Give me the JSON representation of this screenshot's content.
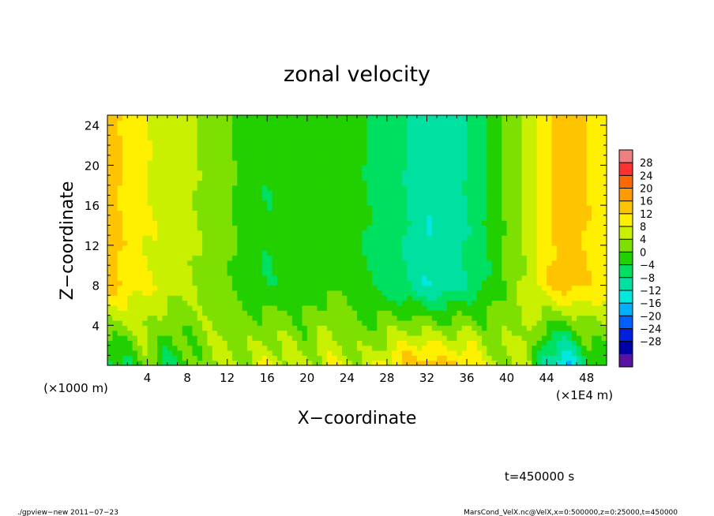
{
  "chart_data": {
    "type": "heatmap",
    "title": "zonal velocity",
    "xlabel": "X−coordinate",
    "ylabel": "Z−coordinate",
    "x_unit_left": "(×1000 m)",
    "x_unit_right": "(×1E4 m)",
    "x_ticks": [
      "4",
      "8",
      "12",
      "16",
      "20",
      "24",
      "28",
      "32",
      "36",
      "40",
      "44",
      "48"
    ],
    "x_tick_values": [
      4,
      8,
      12,
      16,
      20,
      24,
      28,
      32,
      36,
      40,
      44,
      48
    ],
    "y_ticks": [
      "4",
      "8",
      "12",
      "16",
      "20",
      "24"
    ],
    "y_tick_values": [
      4,
      8,
      12,
      16,
      20,
      24
    ],
    "xlim": [
      0,
      50
    ],
    "ylim": [
      0,
      25
    ],
    "colorbar": {
      "labels": [
        "28",
        "24",
        "20",
        "16",
        "12",
        "8",
        "4",
        "0",
        "−4",
        "−8",
        "−12",
        "−16",
        "−20",
        "−24",
        "−28"
      ],
      "values": [
        28,
        24,
        20,
        16,
        12,
        8,
        4,
        0,
        -4,
        -8,
        -12,
        -16,
        -20,
        -24,
        -28
      ],
      "colors": [
        "#f08080",
        "#ff3030",
        "#ff6a00",
        "#ff9a00",
        "#ffc400",
        "#fff000",
        "#c8f000",
        "#7ee000",
        "#22d000",
        "#00e060",
        "#00e0a0",
        "#00e8e0",
        "#00b0ff",
        "#0060ff",
        "#0020e0",
        "#0000a8",
        "#5a10a0"
      ]
    },
    "column_profile": {
      "x": [
        0,
        2,
        4,
        6,
        8,
        10,
        12,
        14,
        16,
        18,
        20,
        22,
        24,
        26,
        28,
        30,
        32,
        34,
        36,
        38,
        40,
        42,
        44,
        46,
        48,
        50
      ],
      "upper_value": [
        14,
        11,
        8,
        7,
        5,
        3,
        1,
        -2,
        -4,
        -2,
        -3,
        -1,
        -2,
        -4,
        -6,
        -8,
        -12,
        -10,
        -8,
        -4,
        1,
        5,
        11,
        15,
        12,
        9
      ],
      "near_surface_value": [
        -8,
        -4,
        2,
        -6,
        -2,
        3,
        6,
        4,
        8,
        6,
        4,
        8,
        6,
        4,
        10,
        14,
        16,
        12,
        14,
        6,
        4,
        6,
        -12,
        -18,
        -6,
        -2
      ]
    },
    "annotation": "t=450000 s",
    "footer_left": "./gpview−new   2011−07−23",
    "footer_right": "MarsCond_VelX.nc@VelX,x=0:500000,z=0:25000,t=450000"
  }
}
